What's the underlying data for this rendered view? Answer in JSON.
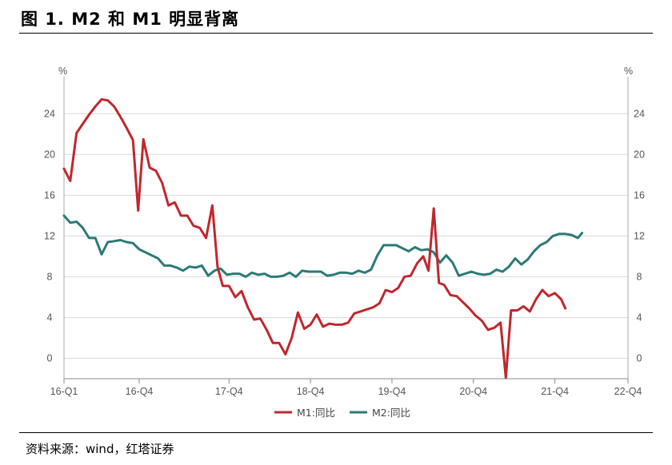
{
  "figure_title": "图 1. M2 和 M1 明显背离",
  "source": "资料来源：wind，红塔证券",
  "chart_data": {
    "type": "line",
    "y_unit_left": "%",
    "y_unit_right": "%",
    "yticks": [
      "0",
      "4",
      "8",
      "12",
      "16",
      "20",
      "24"
    ],
    "ylim": [
      -2,
      27
    ],
    "xlim": [
      0,
      27
    ],
    "xticks": [
      {
        "label": "16-Q1",
        "pos": 0
      },
      {
        "label": "16-Q4",
        "pos": 3.6
      },
      {
        "label": "17-Q4",
        "pos": 7.9
      },
      {
        "label": "18-Q4",
        "pos": 11.8
      },
      {
        "label": "19-Q4",
        "pos": 15.7
      },
      {
        "label": "20-Q4",
        "pos": 19.6
      },
      {
        "label": "21-Q4",
        "pos": 23.5
      },
      {
        "label": "22-Q4",
        "pos": 27
      }
    ],
    "grid": true,
    "legend_position": "bottom-center",
    "series": [
      {
        "name": "M1:同比",
        "color": "#c0272d",
        "points": [
          [
            0,
            18.6
          ],
          [
            0.3,
            17.4
          ],
          [
            0.6,
            22.1
          ],
          [
            0.9,
            23.0
          ],
          [
            1.2,
            23.9
          ],
          [
            1.5,
            24.7
          ],
          [
            1.8,
            25.4
          ],
          [
            2.1,
            25.3
          ],
          [
            2.4,
            24.7
          ],
          [
            2.7,
            23.7
          ],
          [
            3.0,
            22.6
          ],
          [
            3.3,
            21.4
          ],
          [
            3.55,
            14.5
          ],
          [
            3.8,
            21.5
          ],
          [
            4.1,
            18.7
          ],
          [
            4.4,
            18.4
          ],
          [
            4.7,
            17.2
          ],
          [
            5.0,
            15.0
          ],
          [
            5.3,
            15.3
          ],
          [
            5.6,
            14.0
          ],
          [
            5.9,
            14.0
          ],
          [
            6.2,
            13.0
          ],
          [
            6.5,
            12.8
          ],
          [
            6.8,
            11.8
          ],
          [
            7.1,
            15.0
          ],
          [
            7.35,
            9.0
          ],
          [
            7.6,
            7.1
          ],
          [
            7.9,
            7.1
          ],
          [
            8.2,
            6.0
          ],
          [
            8.5,
            6.6
          ],
          [
            8.8,
            5.0
          ],
          [
            9.1,
            3.8
          ],
          [
            9.4,
            3.9
          ],
          [
            9.7,
            2.8
          ],
          [
            10.0,
            1.5
          ],
          [
            10.3,
            1.5
          ],
          [
            10.6,
            0.4
          ],
          [
            10.9,
            2.0
          ],
          [
            11.2,
            4.5
          ],
          [
            11.5,
            2.9
          ],
          [
            11.8,
            3.3
          ],
          [
            12.1,
            4.3
          ],
          [
            12.4,
            3.1
          ],
          [
            12.7,
            3.4
          ],
          [
            13.0,
            3.3
          ],
          [
            13.3,
            3.3
          ],
          [
            13.6,
            3.5
          ],
          [
            13.9,
            4.4
          ],
          [
            14.2,
            4.6
          ],
          [
            14.5,
            4.8
          ],
          [
            14.8,
            5.0
          ],
          [
            15.1,
            5.4
          ],
          [
            15.4,
            6.7
          ],
          [
            15.7,
            6.5
          ],
          [
            16.0,
            6.9
          ],
          [
            16.3,
            8.0
          ],
          [
            16.6,
            8.1
          ],
          [
            16.9,
            9.3
          ],
          [
            17.2,
            10.0
          ],
          [
            17.45,
            8.6
          ],
          [
            17.7,
            14.7
          ],
          [
            17.95,
            7.4
          ],
          [
            18.2,
            7.2
          ],
          [
            18.5,
            6.2
          ],
          [
            18.8,
            6.1
          ],
          [
            19.1,
            5.5
          ],
          [
            19.4,
            4.9
          ],
          [
            19.7,
            4.2
          ],
          [
            20.0,
            3.7
          ],
          [
            20.3,
            2.8
          ],
          [
            20.6,
            3.0
          ],
          [
            20.9,
            3.5
          ],
          [
            21.15,
            -1.9
          ],
          [
            21.4,
            4.7
          ],
          [
            21.7,
            4.7
          ],
          [
            22.0,
            5.1
          ],
          [
            22.3,
            4.6
          ],
          [
            22.6,
            5.8
          ],
          [
            22.9,
            6.7
          ],
          [
            23.2,
            6.1
          ],
          [
            23.5,
            6.4
          ],
          [
            23.8,
            5.8
          ],
          [
            24.0,
            4.9
          ]
        ]
      },
      {
        "name": "M2:同比",
        "color": "#2c7a77",
        "points": [
          [
            0,
            14.0
          ],
          [
            0.3,
            13.3
          ],
          [
            0.6,
            13.4
          ],
          [
            0.9,
            12.8
          ],
          [
            1.2,
            11.8
          ],
          [
            1.5,
            11.8
          ],
          [
            1.8,
            10.2
          ],
          [
            2.1,
            11.4
          ],
          [
            2.4,
            11.5
          ],
          [
            2.7,
            11.6
          ],
          [
            3.0,
            11.4
          ],
          [
            3.3,
            11.3
          ],
          [
            3.6,
            10.7
          ],
          [
            3.9,
            10.4
          ],
          [
            4.2,
            10.1
          ],
          [
            4.5,
            9.8
          ],
          [
            4.8,
            9.1
          ],
          [
            5.1,
            9.1
          ],
          [
            5.4,
            8.9
          ],
          [
            5.7,
            8.6
          ],
          [
            6.0,
            9.0
          ],
          [
            6.3,
            8.9
          ],
          [
            6.6,
            9.1
          ],
          [
            6.9,
            8.1
          ],
          [
            7.2,
            8.6
          ],
          [
            7.5,
            8.8
          ],
          [
            7.8,
            8.2
          ],
          [
            8.1,
            8.3
          ],
          [
            8.4,
            8.3
          ],
          [
            8.7,
            8.0
          ],
          [
            9.0,
            8.4
          ],
          [
            9.3,
            8.2
          ],
          [
            9.6,
            8.3
          ],
          [
            9.9,
            8.0
          ],
          [
            10.2,
            8.0
          ],
          [
            10.5,
            8.1
          ],
          [
            10.8,
            8.4
          ],
          [
            11.1,
            8.0
          ],
          [
            11.4,
            8.6
          ],
          [
            11.7,
            8.5
          ],
          [
            12.0,
            8.5
          ],
          [
            12.3,
            8.5
          ],
          [
            12.6,
            8.1
          ],
          [
            12.9,
            8.2
          ],
          [
            13.2,
            8.4
          ],
          [
            13.5,
            8.4
          ],
          [
            13.8,
            8.3
          ],
          [
            14.1,
            8.6
          ],
          [
            14.4,
            8.4
          ],
          [
            14.7,
            8.7
          ],
          [
            15.0,
            10.1
          ],
          [
            15.3,
            11.1
          ],
          [
            15.6,
            11.1
          ],
          [
            15.9,
            11.1
          ],
          [
            16.2,
            10.8
          ],
          [
            16.5,
            10.5
          ],
          [
            16.8,
            10.9
          ],
          [
            17.1,
            10.6
          ],
          [
            17.4,
            10.7
          ],
          [
            17.7,
            10.4
          ],
          [
            18.0,
            9.4
          ],
          [
            18.3,
            10.1
          ],
          [
            18.6,
            9.4
          ],
          [
            18.9,
            8.1
          ],
          [
            19.2,
            8.3
          ],
          [
            19.5,
            8.5
          ],
          [
            19.8,
            8.3
          ],
          [
            20.1,
            8.2
          ],
          [
            20.4,
            8.3
          ],
          [
            20.7,
            8.7
          ],
          [
            21.0,
            8.5
          ],
          [
            21.3,
            9.0
          ],
          [
            21.6,
            9.8
          ],
          [
            21.9,
            9.2
          ],
          [
            22.2,
            9.7
          ],
          [
            22.5,
            10.5
          ],
          [
            22.8,
            11.1
          ],
          [
            23.1,
            11.4
          ],
          [
            23.4,
            12.0
          ],
          [
            23.7,
            12.2
          ],
          [
            24.0,
            12.2
          ],
          [
            24.3,
            12.1
          ],
          [
            24.6,
            11.8
          ],
          [
            24.8,
            12.3
          ]
        ]
      }
    ]
  }
}
